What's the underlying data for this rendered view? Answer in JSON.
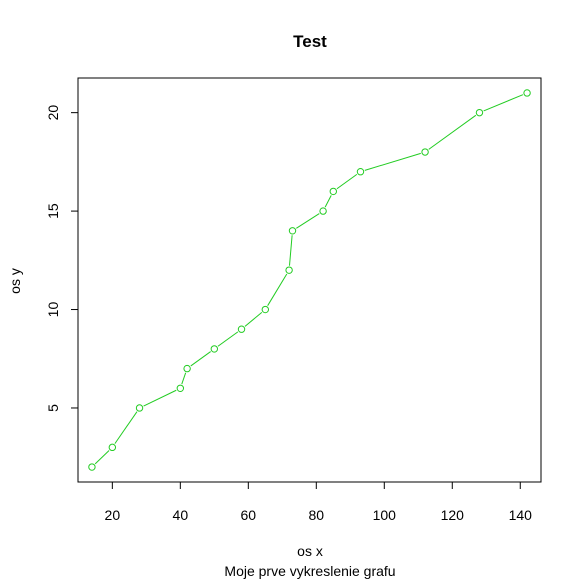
{
  "chart_data": {
    "type": "line",
    "title": "Test",
    "xlabel": "os x",
    "ylabel": "os y",
    "subtitle": "Moje prve vykreslenie grafu",
    "x": [
      14,
      20,
      28,
      40,
      42,
      50,
      58,
      65,
      72,
      73,
      82,
      85,
      93,
      112,
      128,
      142
    ],
    "y": [
      2,
      3,
      5,
      6,
      7,
      8,
      9,
      10,
      12,
      14,
      15,
      16,
      17,
      18,
      20,
      21
    ],
    "xlim": [
      9.9,
      146.1
    ],
    "ylim": [
      1.24,
      21.76
    ],
    "xticks": [
      20,
      40,
      60,
      80,
      100,
      120,
      140
    ],
    "yticks": [
      5,
      10,
      15,
      20
    ],
    "line_color": "#22cc22",
    "marker": "open-circle",
    "grid": false,
    "legend": "none"
  }
}
